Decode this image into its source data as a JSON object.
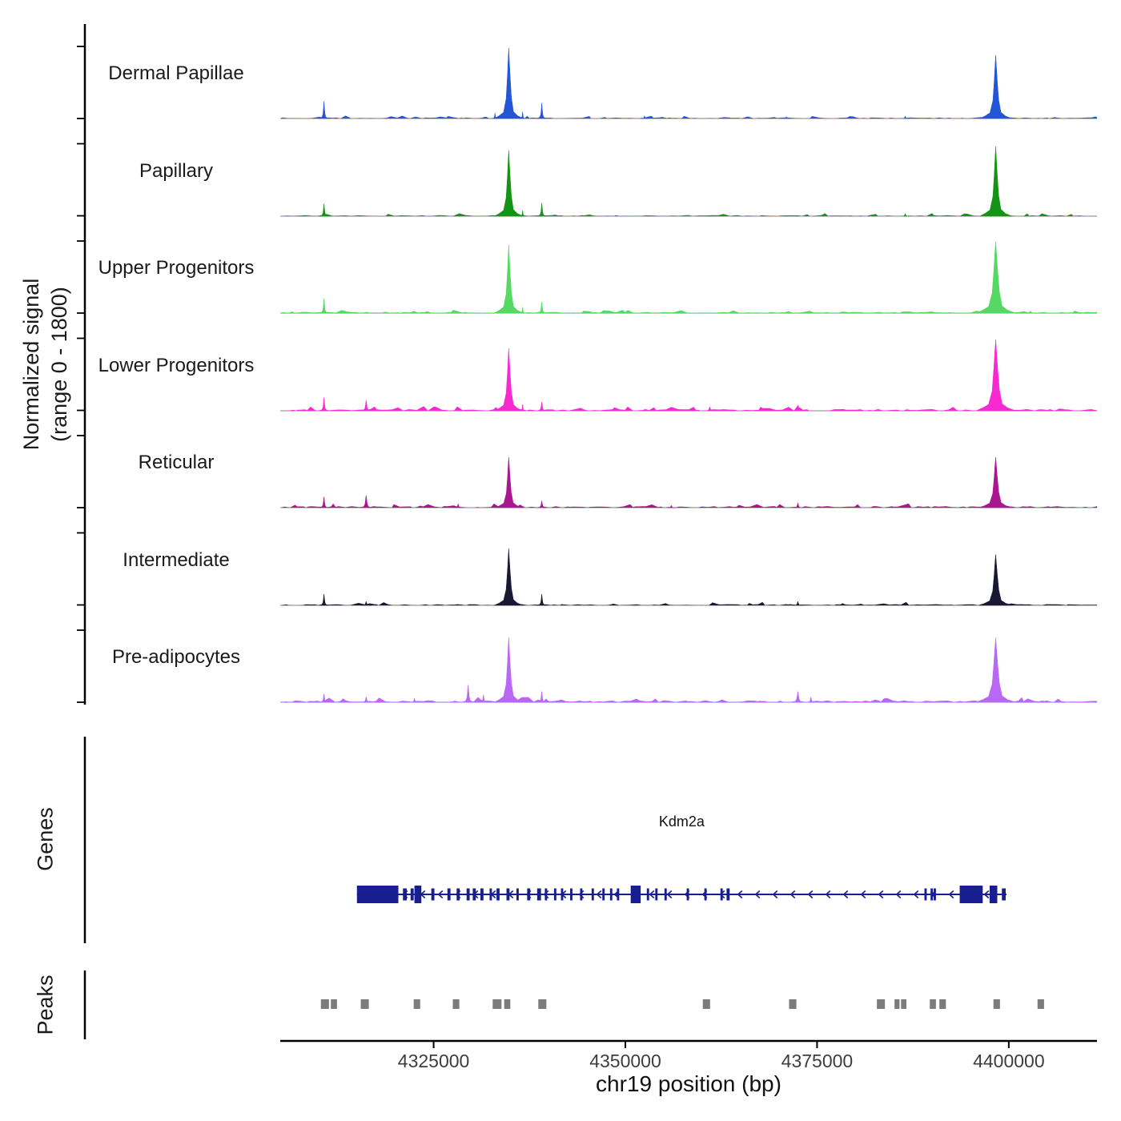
{
  "y_axis": {
    "label_line1": "Normalized signal",
    "label_line2": "(range 0 - 1800)"
  },
  "sections": {
    "genes_label": "Genes",
    "peaks_label": "Peaks"
  },
  "x_axis": {
    "title": "chr19 position (bp)",
    "domain": [
      4305000,
      4411500
    ],
    "ticks": [
      4325000,
      4350000,
      4375000,
      4400000
    ],
    "tick_labels": [
      "4325000",
      "4350000",
      "4375000",
      "4400000"
    ]
  },
  "colors": {
    "baseline": "#888888",
    "axis": "#000000",
    "gene": "#181d8f",
    "peak_box": "#7c7c7c"
  },
  "chart_data": {
    "type": "area",
    "title": "",
    "x_units": "chr19 position (bp)",
    "signal_range": [
      0,
      1800
    ],
    "peak_format": "[position_bp, signal_height, base_width_bp]",
    "tracks": [
      {
        "label": "Dermal Papillae",
        "color": "#2256d6",
        "noise": 0.8,
        "peaks": [
          [
            4310700,
            430,
            1400
          ],
          [
            4334800,
            1760,
            3800
          ],
          [
            4333000,
            140,
            900
          ],
          [
            4336600,
            170,
            900
          ],
          [
            4339100,
            390,
            1400
          ],
          [
            4352500,
            70,
            1000
          ],
          [
            4371000,
            50,
            900
          ],
          [
            4386500,
            60,
            1100
          ],
          [
            4398300,
            1580,
            4200
          ]
        ]
      },
      {
        "label": "Papillary",
        "color": "#149414",
        "noise": 0.8,
        "peaks": [
          [
            4310700,
            310,
            1400
          ],
          [
            4334800,
            1650,
            3800
          ],
          [
            4336600,
            140,
            900
          ],
          [
            4339100,
            330,
            1400
          ],
          [
            4386500,
            70,
            1100
          ],
          [
            4398300,
            1740,
            4200
          ]
        ]
      },
      {
        "label": "Upper Progenitors",
        "color": "#56d963",
        "noise": 0.9,
        "peaks": [
          [
            4310700,
            360,
            1400
          ],
          [
            4334800,
            1700,
            3800
          ],
          [
            4336600,
            150,
            900
          ],
          [
            4339100,
            280,
            1400
          ],
          [
            4398300,
            1790,
            5200
          ]
        ]
      },
      {
        "label": "Lower Progenitors",
        "color": "#f72ad2",
        "noise": 1.3,
        "peaks": [
          [
            4310700,
            330,
            1400
          ],
          [
            4316200,
            270,
            1500
          ],
          [
            4334800,
            1560,
            3800
          ],
          [
            4336600,
            160,
            900
          ],
          [
            4339100,
            220,
            1400
          ],
          [
            4361000,
            100,
            1400
          ],
          [
            4372500,
            140,
            1500
          ],
          [
            4398300,
            1780,
            5200
          ]
        ]
      },
      {
        "label": "Reticular",
        "color": "#aa1690",
        "noise": 1.2,
        "peaks": [
          [
            4310700,
            270,
            1400
          ],
          [
            4316200,
            310,
            1700
          ],
          [
            4328200,
            100,
            1200
          ],
          [
            4334800,
            1260,
            3600
          ],
          [
            4339100,
            170,
            1400
          ],
          [
            4356000,
            60,
            1200
          ],
          [
            4372500,
            120,
            1400
          ],
          [
            4398300,
            1260,
            4400
          ]
        ]
      },
      {
        "label": "Intermediate",
        "color": "#191833",
        "noise": 0.9,
        "peaks": [
          [
            4310700,
            280,
            1400
          ],
          [
            4316200,
            100,
            1400
          ],
          [
            4334800,
            1420,
            3800
          ],
          [
            4339100,
            280,
            1400
          ],
          [
            4372500,
            100,
            1400
          ],
          [
            4398300,
            1270,
            4400
          ]
        ]
      },
      {
        "label": "Pre-adipocytes",
        "color": "#b968f5",
        "noise": 1.4,
        "peaks": [
          [
            4310700,
            210,
            1400
          ],
          [
            4316200,
            140,
            1400
          ],
          [
            4322500,
            100,
            1200
          ],
          [
            4329500,
            430,
            1700
          ],
          [
            4331500,
            190,
            1300
          ],
          [
            4334800,
            1620,
            3800
          ],
          [
            4339100,
            270,
            1400
          ],
          [
            4372500,
            270,
            1900
          ],
          [
            4374200,
            130,
            1200
          ],
          [
            4398300,
            1610,
            5200
          ]
        ]
      }
    ],
    "gene": {
      "name": "Kdm2a",
      "chrom": "chr19",
      "start": 4315000,
      "end": 4399700,
      "strand": "-",
      "exon_format": "[start_bp, end_bp, height_class(2=tall,1=normal)]",
      "exons": [
        [
          4315000,
          4320400,
          2
        ],
        [
          4321000,
          4321500,
          1
        ],
        [
          4322000,
          4322400,
          1
        ],
        [
          4322500,
          4323400,
          2
        ],
        [
          4324700,
          4325100,
          1
        ],
        [
          4326800,
          4327200,
          1
        ],
        [
          4328000,
          4328400,
          1
        ],
        [
          4329300,
          4329700,
          1
        ],
        [
          4330100,
          4330500,
          1
        ],
        [
          4331100,
          4331500,
          1
        ],
        [
          4332300,
          4332600,
          1
        ],
        [
          4333200,
          4333600,
          1
        ],
        [
          4334500,
          4334900,
          1
        ],
        [
          4335800,
          4336100,
          1
        ],
        [
          4337200,
          4337600,
          1
        ],
        [
          4338500,
          4339000,
          1
        ],
        [
          4339500,
          4339800,
          1
        ],
        [
          4340700,
          4341000,
          1
        ],
        [
          4341600,
          4341900,
          1
        ],
        [
          4342800,
          4343100,
          1
        ],
        [
          4344100,
          4344400,
          1
        ],
        [
          4345600,
          4345900,
          1
        ],
        [
          4347000,
          4347300,
          1
        ],
        [
          4348000,
          4348300,
          1
        ],
        [
          4348900,
          4349200,
          1
        ],
        [
          4350700,
          4352000,
          2
        ],
        [
          4352800,
          4353100,
          1
        ],
        [
          4353900,
          4354200,
          1
        ],
        [
          4355100,
          4355400,
          1
        ],
        [
          4358000,
          4358300,
          1
        ],
        [
          4360300,
          4360600,
          1
        ],
        [
          4362400,
          4362700,
          1
        ],
        [
          4363200,
          4363600,
          1
        ],
        [
          4389000,
          4389300,
          1
        ],
        [
          4389800,
          4390100,
          1
        ],
        [
          4390200,
          4390500,
          1
        ],
        [
          4393600,
          4396600,
          2
        ],
        [
          4397500,
          4398500,
          2
        ],
        [
          4399100,
          4399600,
          1
        ]
      ]
    },
    "peak_calls": [
      [
        4310300,
        4311350
      ],
      [
        4311600,
        4312400
      ],
      [
        4315500,
        4316550
      ],
      [
        4322400,
        4323250
      ],
      [
        4327500,
        4328350
      ],
      [
        4332700,
        4333850
      ],
      [
        4334200,
        4335000
      ],
      [
        4338650,
        4339700
      ],
      [
        4360100,
        4361050
      ],
      [
        4371350,
        4372300
      ],
      [
        4382800,
        4383850
      ],
      [
        4385100,
        4385750
      ],
      [
        4385950,
        4386650
      ],
      [
        4389700,
        4390500
      ],
      [
        4390950,
        4391800
      ],
      [
        4398000,
        4398850
      ],
      [
        4403750,
        4404600
      ]
    ]
  }
}
